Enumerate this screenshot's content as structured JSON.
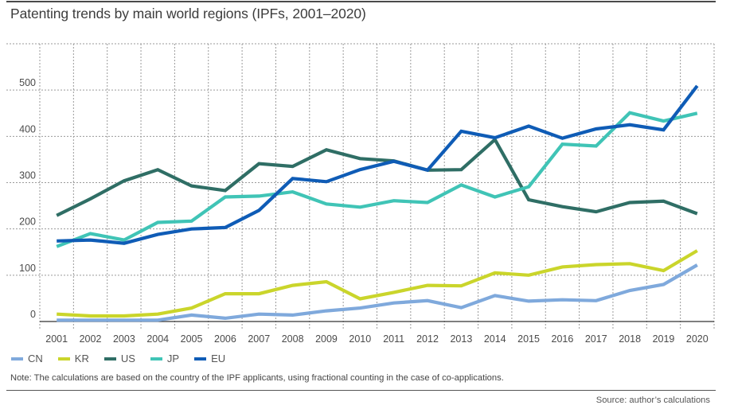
{
  "chart_data": {
    "type": "line",
    "title": "Patenting trends by main world regions (IPFs, 2001–2020)",
    "xlabel": "",
    "ylabel": "",
    "ylim": [
      0,
      600
    ],
    "yticks": [
      0,
      100,
      200,
      300,
      400,
      500
    ],
    "grid": true,
    "legend_position": "bottom-left",
    "categories": [
      "2001",
      "2002",
      "2003",
      "2004",
      "2005",
      "2006",
      "2007",
      "2008",
      "2009",
      "2010",
      "2011",
      "2012",
      "2013",
      "2014",
      "2015",
      "2016",
      "2017",
      "2018",
      "2019",
      "2020"
    ],
    "series": [
      {
        "name": "CN",
        "color": "#7FA9DC",
        "values": [
          3,
          3,
          3,
          3,
          14,
          7,
          16,
          14,
          23,
          29,
          40,
          45,
          30,
          56,
          44,
          47,
          45,
          67,
          80,
          122
        ]
      },
      {
        "name": "KR",
        "color": "#CAD52B",
        "values": [
          16,
          12,
          12,
          16,
          29,
          60,
          60,
          78,
          86,
          49,
          63,
          78,
          77,
          105,
          100,
          118,
          123,
          125,
          110,
          153
        ]
      },
      {
        "name": "US",
        "color": "#2F6E65",
        "values": [
          229,
          265,
          304,
          328,
          293,
          283,
          341,
          335,
          371,
          352,
          347,
          327,
          328,
          393,
          263,
          248,
          237,
          257,
          260,
          233
        ]
      },
      {
        "name": "JP",
        "color": "#40C4B6",
        "values": [
          162,
          190,
          176,
          214,
          217,
          269,
          271,
          280,
          254,
          247,
          261,
          257,
          295,
          269,
          291,
          383,
          379,
          451,
          433,
          450
        ]
      },
      {
        "name": "EU",
        "color": "#0F5CB6",
        "values": [
          174,
          176,
          169,
          188,
          200,
          203,
          240,
          309,
          302,
          328,
          346,
          327,
          411,
          397,
          422,
          396,
          416,
          425,
          414,
          509
        ]
      }
    ]
  },
  "note": "Note: The calculations are based on the country of the IPF applicants, using fractional counting in the case of co-applications.",
  "source": "Source: author’s calculations"
}
